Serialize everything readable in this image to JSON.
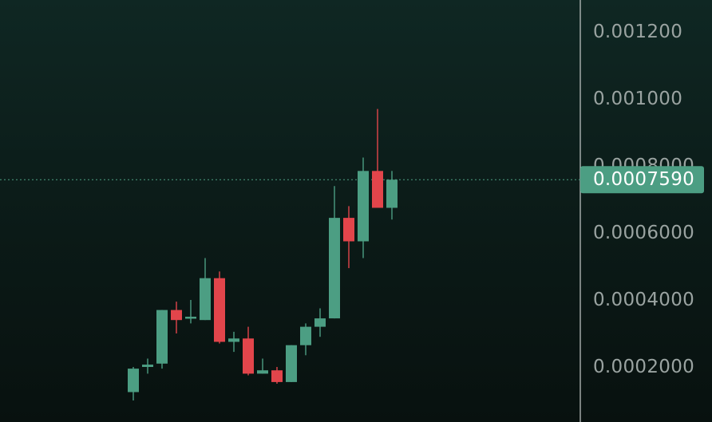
{
  "colors": {
    "up": "#4c9e83",
    "down": "#e2454b",
    "axis_line": "#c7cccb",
    "price_line": "#4c9e83",
    "price_badge": "#4c9e83",
    "tick_text": "#9aa3a1"
  },
  "chart_data": {
    "type": "candlestick",
    "y_ticks": [
      "0.001200",
      "0.001000",
      "0.0008000",
      "0.0006000",
      "0.0004000",
      "0.0002000"
    ],
    "y_tick_values": [
      0.0012,
      0.001,
      0.0008,
      0.0006,
      0.0004,
      0.0002
    ],
    "ylim": [
      0.0,
      0.00125
    ],
    "current_price": 0.000759,
    "current_price_label": "0.0007590",
    "grid": false,
    "candles": [
      {
        "o": 0.000125,
        "h": 0.0002,
        "l": 0.0001,
        "c": 0.000195
      },
      {
        "o": 0.0002,
        "h": 0.000225,
        "l": 0.00018,
        "c": 0.000207
      },
      {
        "o": 0.00021,
        "h": 0.00037,
        "l": 0.000195,
        "c": 0.00037
      },
      {
        "o": 0.00037,
        "h": 0.000395,
        "l": 0.0003,
        "c": 0.00034
      },
      {
        "o": 0.000345,
        "h": 0.0004,
        "l": 0.00033,
        "c": 0.00035
      },
      {
        "o": 0.00034,
        "h": 0.000525,
        "l": 0.00034,
        "c": 0.000465
      },
      {
        "o": 0.000465,
        "h": 0.000485,
        "l": 0.00027,
        "c": 0.000275
      },
      {
        "o": 0.000275,
        "h": 0.000305,
        "l": 0.000245,
        "c": 0.000285
      },
      {
        "o": 0.000285,
        "h": 0.00032,
        "l": 0.000175,
        "c": 0.00018
      },
      {
        "o": 0.00018,
        "h": 0.000225,
        "l": 0.00018,
        "c": 0.00019
      },
      {
        "o": 0.00019,
        "h": 0.0002,
        "l": 0.00015,
        "c": 0.000155
      },
      {
        "o": 0.000155,
        "h": 0.000265,
        "l": 0.000155,
        "c": 0.000265
      },
      {
        "o": 0.000265,
        "h": 0.00033,
        "l": 0.000235,
        "c": 0.00032
      },
      {
        "o": 0.00032,
        "h": 0.000375,
        "l": 0.00029,
        "c": 0.000345
      },
      {
        "o": 0.000345,
        "h": 0.00074,
        "l": 0.000345,
        "c": 0.000645
      },
      {
        "o": 0.000645,
        "h": 0.00068,
        "l": 0.000495,
        "c": 0.000575
      },
      {
        "o": 0.000575,
        "h": 0.000825,
        "l": 0.000525,
        "c": 0.000785
      },
      {
        "o": 0.000785,
        "h": 0.00097,
        "l": 0.000675,
        "c": 0.000675
      },
      {
        "o": 0.000675,
        "h": 0.000785,
        "l": 0.00064,
        "c": 0.000759
      }
    ]
  }
}
